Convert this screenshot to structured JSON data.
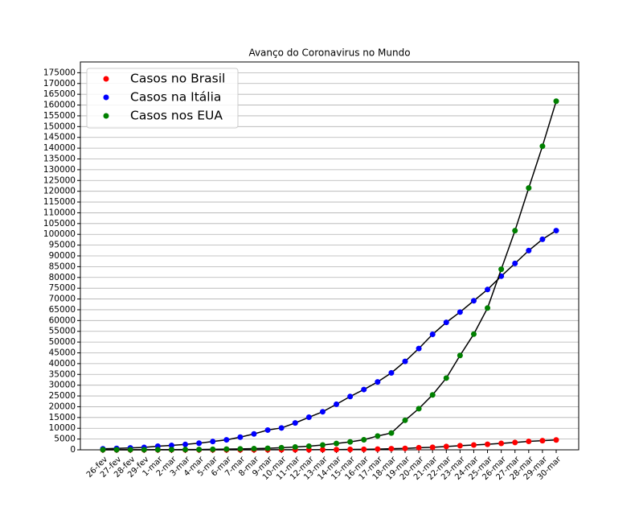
{
  "chart_data": {
    "type": "line",
    "title": "Avanço do Coronavirus no Mundo",
    "categories": [
      "26-fev",
      "27-fev",
      "28-fev",
      "29-fev",
      "1-mar",
      "2-mar",
      "3-mar",
      "4-mar",
      "5-mar",
      "6-mar",
      "7-mar",
      "8-mar",
      "9-mar",
      "10-mar",
      "11-mar",
      "12-mar",
      "13-mar",
      "14-mar",
      "15-mar",
      "16-mar",
      "17-mar",
      "18-mar",
      "19-mar",
      "20-mar",
      "21-mar",
      "22-mar",
      "23-mar",
      "24-mar",
      "25-mar",
      "26-mar",
      "27-mar",
      "28-mar",
      "29-mar",
      "30-mar"
    ],
    "series": [
      {
        "name": "Casos no Brasil",
        "color": "#ff0000",
        "values": [
          1,
          1,
          1,
          2,
          2,
          2,
          2,
          3,
          3,
          8,
          13,
          19,
          25,
          25,
          34,
          52,
          77,
          98,
          200,
          234,
          346,
          529,
          640,
          970,
          1178,
          1546,
          1924,
          2247,
          2554,
          2985,
          3417,
          3904,
          4256,
          4579
        ]
      },
      {
        "name": "Casos na Itália",
        "color": "#0000ff",
        "values": [
          453,
          655,
          888,
          1128,
          1694,
          2036,
          2502,
          3089,
          3858,
          4636,
          5883,
          7375,
          9172,
          10149,
          12462,
          15113,
          17660,
          21157,
          24747,
          27980,
          31506,
          35713,
          41035,
          47021,
          53578,
          59138,
          63927,
          69176,
          74386,
          80589,
          86498,
          92472,
          97689,
          101739
        ]
      },
      {
        "name": "Casos nos EUA",
        "color": "#008000",
        "values": [
          60,
          60,
          62,
          68,
          75,
          100,
          124,
          158,
          221,
          319,
          435,
          541,
          704,
          994,
          1301,
          1697,
          2247,
          2943,
          3680,
          4663,
          6411,
          7800,
          13700,
          19100,
          25500,
          33300,
          43800,
          53700,
          65800,
          83800,
          101700,
          121500,
          140900,
          161800
        ]
      }
    ],
    "ylim": [
      0,
      180000
    ],
    "yticks": [
      0,
      5000,
      10000,
      15000,
      20000,
      25000,
      30000,
      35000,
      40000,
      45000,
      50000,
      55000,
      60000,
      65000,
      70000,
      75000,
      80000,
      85000,
      90000,
      95000,
      100000,
      105000,
      110000,
      115000,
      120000,
      125000,
      130000,
      135000,
      140000,
      145000,
      150000,
      155000,
      160000,
      165000,
      170000,
      175000
    ],
    "grid": true,
    "legend": "upper left"
  }
}
